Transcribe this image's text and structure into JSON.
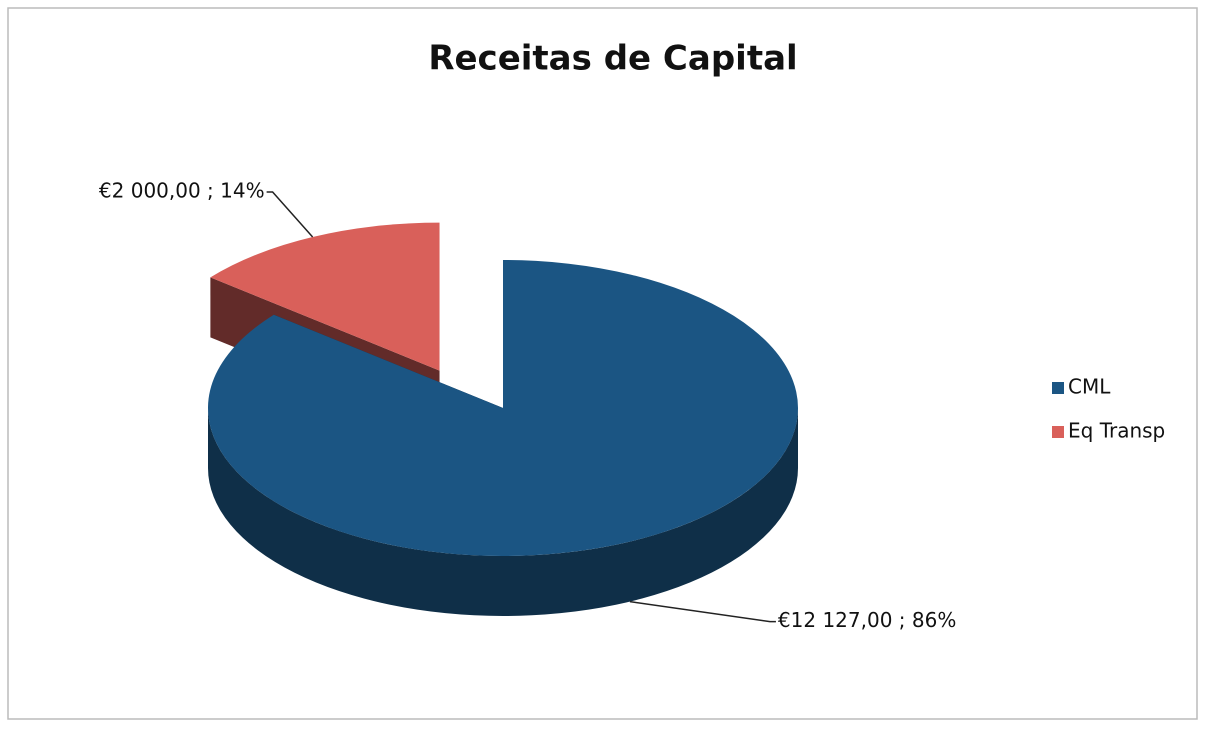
{
  "chart_data": {
    "type": "pie",
    "title": "Receitas de Capital",
    "categories": [
      "CML",
      "Eq Transp"
    ],
    "values": [
      12127,
      2000
    ],
    "value_labels": [
      "€12 127,00 ; 86%",
      "€2 000,00 ; 14%"
    ],
    "colors": [
      "#1b5583",
      "#d9605a"
    ],
    "exploded": [
      false,
      true
    ],
    "legend": "right"
  }
}
